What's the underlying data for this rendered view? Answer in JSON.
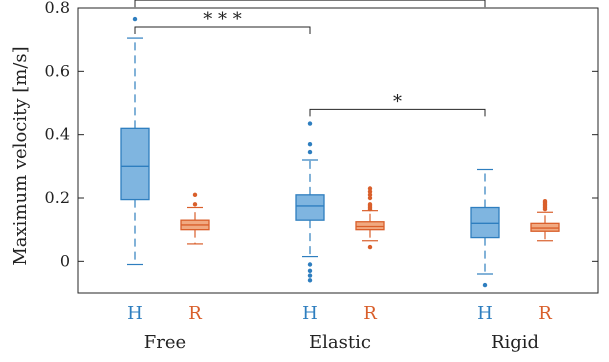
{
  "chart_data": {
    "type": "box",
    "ylabel": "Maximum velocity [m/s]",
    "ylim": [
      -0.1,
      0.8
    ],
    "yticks": [
      0,
      0.2,
      0.4,
      0.6,
      0.8
    ],
    "ytick_labels": [
      "0",
      "0.2",
      "0.4",
      "0.6",
      "0.8"
    ],
    "groups": [
      "Free",
      "Elastic",
      "Rigid"
    ],
    "conditions": [
      {
        "label": "H",
        "color": "#2e7ebf",
        "fill": "#7fb5e0"
      },
      {
        "label": "R",
        "color": "#d95f2b",
        "fill": "#f1a981"
      }
    ],
    "boxes": [
      {
        "group": "Free",
        "condition": "H",
        "whisker_low": -0.01,
        "q1": 0.195,
        "median": 0.3,
        "q3": 0.42,
        "whisker_high": 0.705,
        "outliers": [
          0.765
        ]
      },
      {
        "group": "Free",
        "condition": "R",
        "whisker_low": 0.055,
        "q1": 0.1,
        "median": 0.115,
        "q3": 0.13,
        "whisker_high": 0.17,
        "outliers": [
          0.18,
          0.21
        ]
      },
      {
        "group": "Elastic",
        "condition": "H",
        "whisker_low": 0.015,
        "q1": 0.13,
        "median": 0.175,
        "q3": 0.21,
        "whisker_high": 0.32,
        "outliers": [
          0.345,
          0.37,
          0.435,
          -0.01,
          -0.03,
          -0.045,
          -0.06
        ]
      },
      {
        "group": "Elastic",
        "condition": "R",
        "whisker_low": 0.065,
        "q1": 0.1,
        "median": 0.11,
        "q3": 0.125,
        "whisker_high": 0.16,
        "outliers": [
          0.165,
          0.17,
          0.175,
          0.18,
          0.2,
          0.21,
          0.22,
          0.23,
          0.045
        ]
      },
      {
        "group": "Rigid",
        "condition": "H",
        "whisker_low": -0.04,
        "q1": 0.075,
        "median": 0.12,
        "q3": 0.17,
        "whisker_high": 0.29,
        "outliers": [
          -0.075
        ]
      },
      {
        "group": "Rigid",
        "condition": "R",
        "whisker_low": 0.065,
        "q1": 0.095,
        "median": 0.105,
        "q3": 0.12,
        "whisker_high": 0.155,
        "outliers": [
          0.165,
          0.17,
          0.175,
          0.18,
          0.185,
          0.19
        ]
      }
    ],
    "significance": [
      {
        "from": "Free",
        "to": "Rigid",
        "condition": "H",
        "y": 0.825,
        "label": "***"
      },
      {
        "from": "Free",
        "to": "Elastic",
        "condition": "H",
        "y": 0.74,
        "label": "***"
      },
      {
        "from": "Elastic",
        "to": "Rigid",
        "condition": "H",
        "y": 0.48,
        "label": "*"
      }
    ],
    "grid": false
  }
}
